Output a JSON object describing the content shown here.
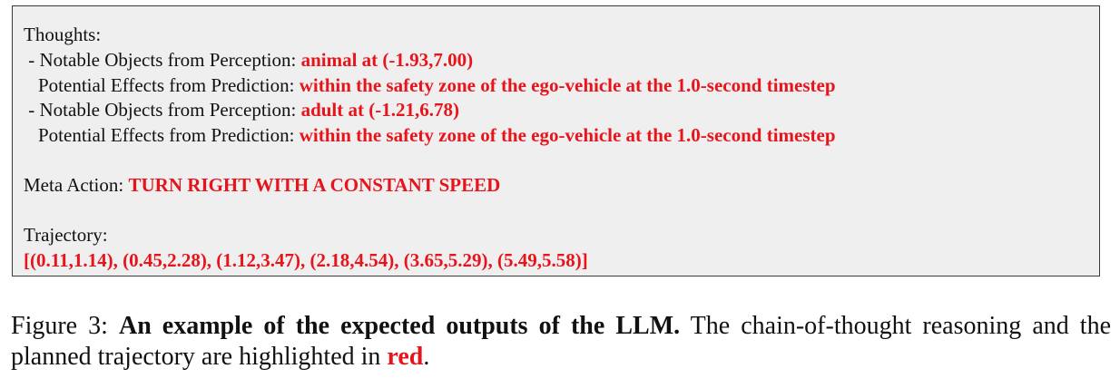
{
  "box": {
    "thoughts_label": "Thoughts:",
    "items": [
      {
        "perception_label": " - Notable Objects from Perception: ",
        "perception_value": "animal at (-1.93,7.00)",
        "prediction_label": "Potential Effects from Prediction: ",
        "prediction_value": "within the safety zone of the ego-vehicle at the 1.0-second timestep"
      },
      {
        "perception_label": " - Notable Objects from Perception: ",
        "perception_value": "adult at (-1.21,6.78)",
        "prediction_label": "Potential Effects from Prediction: ",
        "prediction_value": "within the safety zone of the ego-vehicle at the 1.0-second timestep"
      }
    ],
    "meta_action_label": "Meta Action: ",
    "meta_action_value": "TURN RIGHT WITH A CONSTANT SPEED",
    "trajectory_label": "Trajectory:",
    "trajectory_value": "[(0.11,1.14), (0.45,2.28), (1.12,3.47), (2.18,4.54), (3.65,5.29), (5.49,5.58)]"
  },
  "caption": {
    "figure_label": "Figure 3: ",
    "bold_title": "An example of the expected outputs of the LLM.",
    "text": " The chain-of-thought reasoning and the planned trajectory are highlighted in ",
    "red_word": "red",
    "end": "."
  },
  "colors": {
    "highlight": "#e8141b",
    "box_background": "#efefef",
    "box_border": "#3a3a3a"
  }
}
